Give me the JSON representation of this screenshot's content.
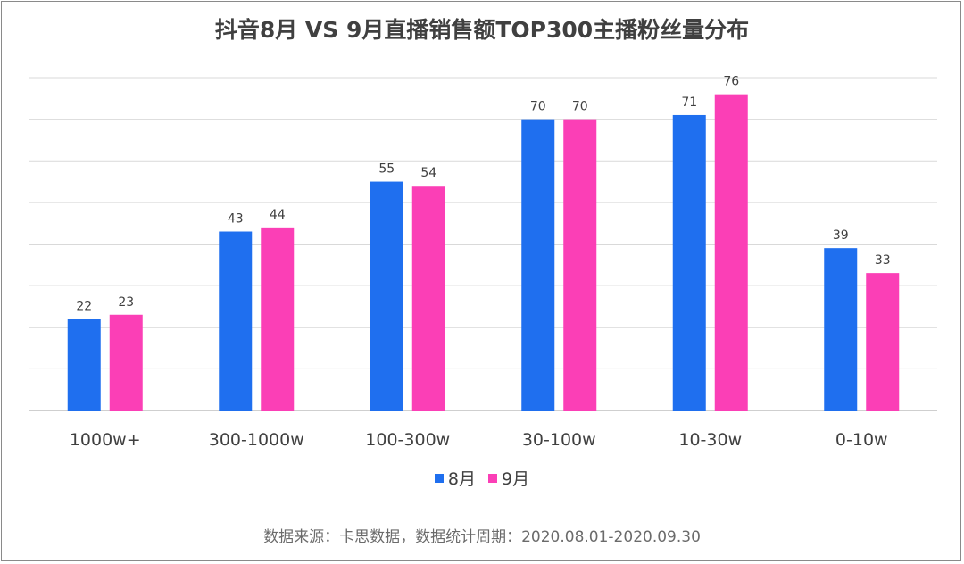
{
  "chart_data": {
    "type": "bar",
    "title": "抖音8月 VS 9月直播销售额TOP300主播粉丝量分布",
    "categories": [
      "1000w+",
      "300-1000w",
      "100-300w",
      "30-100w",
      "10-30w",
      "0-10w"
    ],
    "series": [
      {
        "name": "8月",
        "color": "#1f6fef",
        "values": [
          22,
          43,
          55,
          70,
          71,
          39
        ]
      },
      {
        "name": "9月",
        "color": "#fb3fb6",
        "values": [
          23,
          44,
          54,
          70,
          76,
          33
        ]
      }
    ],
    "ylim": [
      0,
      80
    ],
    "grid": true,
    "legend_position": "bottom"
  },
  "source_note": "数据来源：卡思数据，数据统计周期：2020.08.01-2020.09.30"
}
